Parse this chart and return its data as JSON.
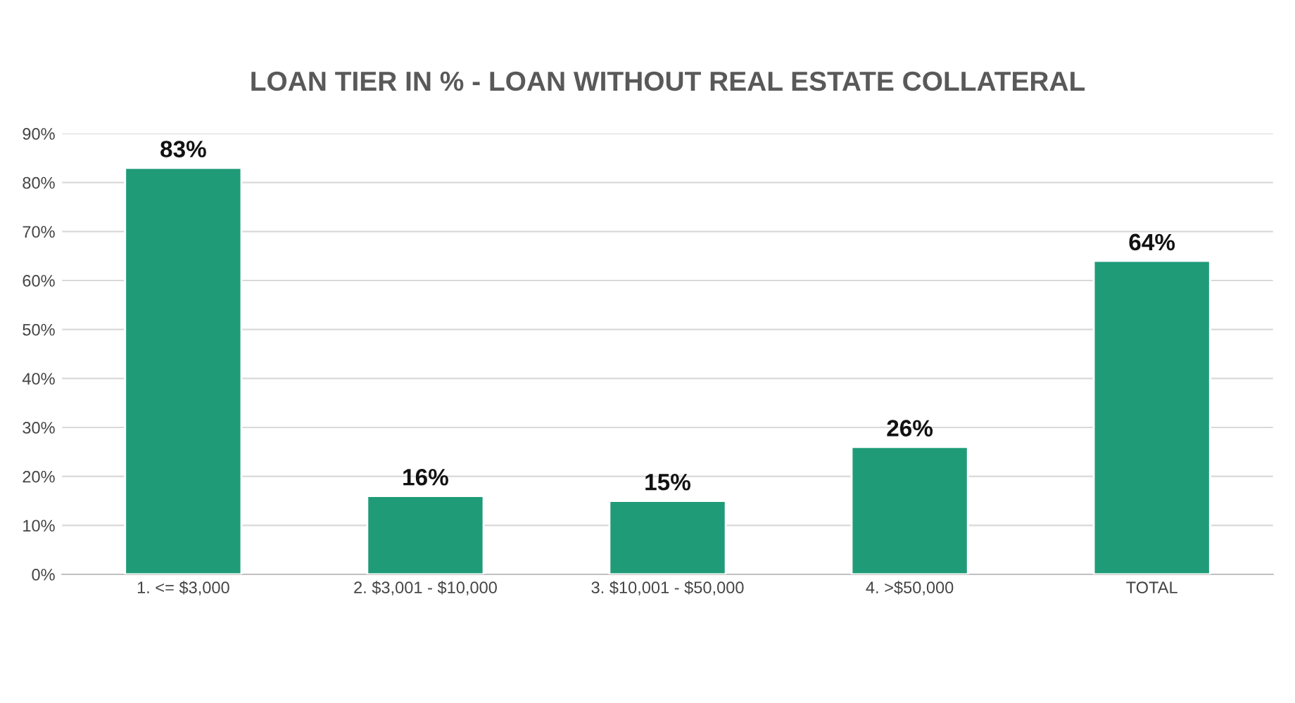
{
  "chart_data": {
    "type": "bar",
    "title": "LOAN TIER IN % - LOAN WITHOUT REAL ESTATE COLLATERAL",
    "categories": [
      "1. <= $3,000",
      "2. $3,001 - $10,000",
      "3. $10,001 - $50,000",
      "4. >$50,000",
      "TOTAL"
    ],
    "values": [
      83,
      16,
      15,
      26,
      64
    ],
    "value_labels": [
      "83%",
      "16%",
      "15%",
      "26%",
      "64%"
    ],
    "color": "#1f9b78",
    "ylim": [
      0,
      90
    ],
    "yticks": [
      {
        "value": 0,
        "label": "0%"
      },
      {
        "value": 10,
        "label": "10%"
      },
      {
        "value": 20,
        "label": "20%"
      },
      {
        "value": 30,
        "label": "30%"
      },
      {
        "value": 40,
        "label": "40%"
      },
      {
        "value": 50,
        "label": "50%"
      },
      {
        "value": 60,
        "label": "60%"
      },
      {
        "value": 70,
        "label": "70%"
      },
      {
        "value": 80,
        "label": "80%"
      },
      {
        "value": 90,
        "label": "90%"
      }
    ],
    "grid": "y",
    "legend": false
  }
}
